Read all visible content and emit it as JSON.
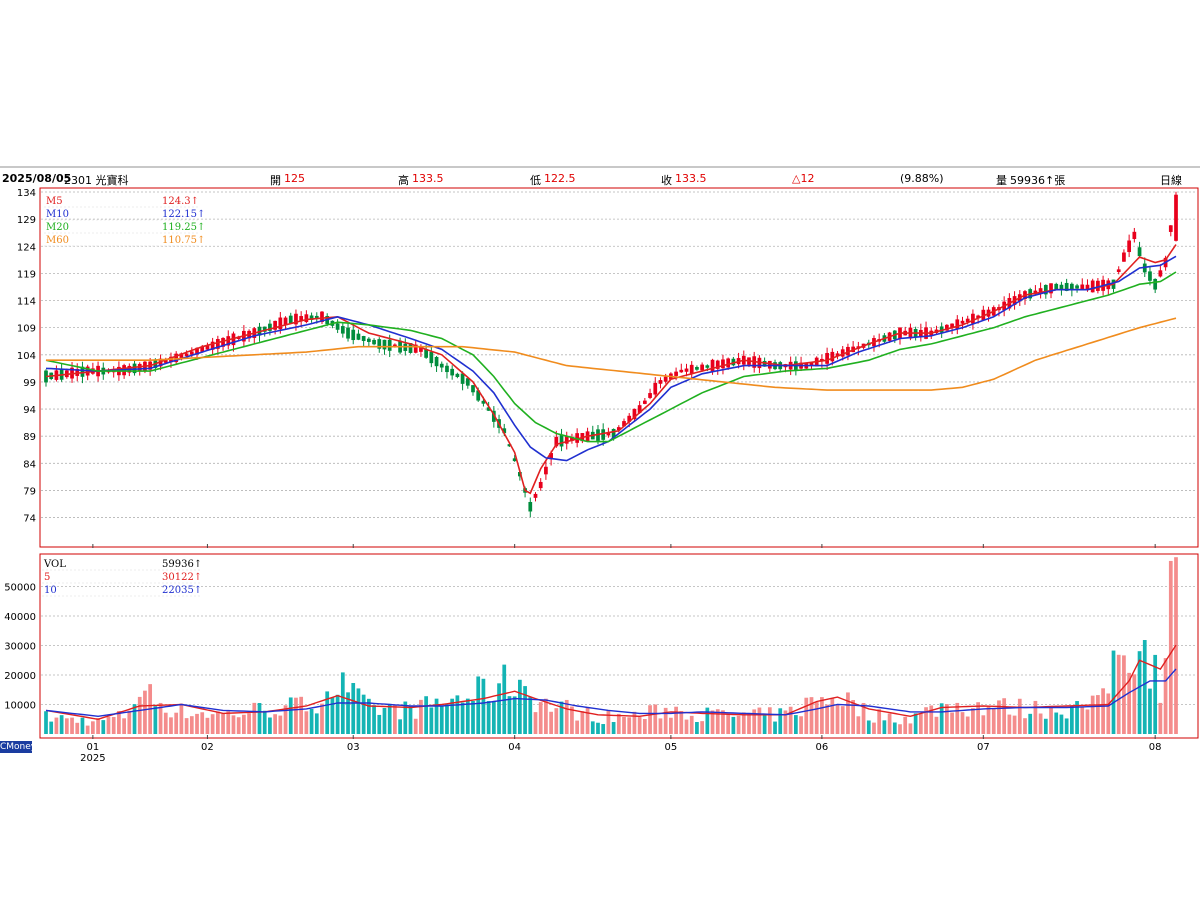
{
  "header": {
    "date": "2025/08/05",
    "stock": "2301 光寶科",
    "open_label": "開",
    "open": "125",
    "high_label": "高",
    "high": "133.5",
    "low_label": "低",
    "low": "122.5",
    "close_label": "收",
    "close": "133.5",
    "change": "△12",
    "pct": "(9.88%)",
    "vol_label": "量",
    "vol": "59936↑張",
    "period": "日線"
  },
  "brand": "CMoney",
  "chart_data": {
    "type": "candlestick",
    "price_axis": {
      "ticks": [
        74,
        79,
        84,
        89,
        94,
        99,
        104,
        109,
        114,
        119,
        124,
        129,
        134
      ],
      "range": [
        69.5,
        134
      ]
    },
    "volume_axis": {
      "ticks": [
        10000,
        20000,
        30000,
        40000,
        50000
      ],
      "range": [
        0,
        60000
      ]
    },
    "x_axis": {
      "months": [
        {
          "label": "01",
          "day": 9
        },
        {
          "label": "02",
          "day": 31
        },
        {
          "label": "03",
          "day": 59
        },
        {
          "label": "04",
          "day": 90
        },
        {
          "label": "05",
          "day": 120
        },
        {
          "label": "06",
          "day": 149
        },
        {
          "label": "07",
          "day": 180
        },
        {
          "label": "08",
          "day": 213
        }
      ],
      "year": "2025"
    },
    "price_legend": [
      {
        "name": "M5",
        "value": "124.3↑",
        "color": "#e02020"
      },
      {
        "name": "M10",
        "value": "122.15↑",
        "color": "#2030d0"
      },
      {
        "name": "M20",
        "value": "119.25↑",
        "color": "#20b020"
      },
      {
        "name": "M60",
        "value": "110.75↑",
        "color": "#f08c1e"
      }
    ],
    "volume_legend": [
      {
        "name": "VOL",
        "value": "59936↑",
        "color": "#000000"
      },
      {
        "name": "5",
        "value": "30122↑",
        "color": "#e02020"
      },
      {
        "name": "10",
        "value": "22035↑",
        "color": "#2030d0"
      }
    ],
    "colors": {
      "up": "#e8001c",
      "down": "#008c3c",
      "vol_up": "#f48c8c",
      "vol_down": "#14b4b4"
    },
    "num_days": 218,
    "candles_keyframes": [
      [
        0,
        100
      ],
      [
        8,
        101
      ],
      [
        14,
        101
      ],
      [
        20,
        102
      ],
      [
        27,
        104
      ],
      [
        33,
        106
      ],
      [
        40,
        108
      ],
      [
        47,
        110.5
      ],
      [
        53,
        111
      ],
      [
        58,
        108
      ],
      [
        64,
        106
      ],
      [
        72,
        105
      ],
      [
        76,
        102
      ],
      [
        81,
        99
      ],
      [
        85,
        94
      ],
      [
        88,
        90
      ],
      [
        91,
        82
      ],
      [
        93,
        76
      ],
      [
        95,
        80
      ],
      [
        98,
        88
      ],
      [
        104,
        89
      ],
      [
        109,
        89.5
      ],
      [
        114,
        94
      ],
      [
        118,
        99
      ],
      [
        122,
        101
      ],
      [
        128,
        102
      ],
      [
        134,
        103
      ],
      [
        140,
        102
      ],
      [
        146,
        102
      ],
      [
        152,
        104
      ],
      [
        158,
        106
      ],
      [
        164,
        108
      ],
      [
        170,
        108
      ],
      [
        176,
        110
      ],
      [
        182,
        112
      ],
      [
        188,
        115
      ],
      [
        194,
        116.5
      ],
      [
        200,
        116.5
      ],
      [
        205,
        117
      ],
      [
        207,
        122
      ],
      [
        209,
        126
      ],
      [
        211,
        120
      ],
      [
        213,
        117
      ],
      [
        215,
        121
      ],
      [
        217,
        133.5
      ]
    ],
    "volume_keyframes": [
      [
        0,
        6000
      ],
      [
        10,
        4500
      ],
      [
        15,
        6500
      ],
      [
        18,
        16000
      ],
      [
        22,
        11000
      ],
      [
        26,
        8000
      ],
      [
        35,
        7000
      ],
      [
        42,
        9000
      ],
      [
        50,
        10000
      ],
      [
        56,
        18000
      ],
      [
        62,
        9000
      ],
      [
        70,
        8500
      ],
      [
        76,
        11000
      ],
      [
        80,
        13000
      ],
      [
        84,
        15000
      ],
      [
        88,
        18000
      ],
      [
        91,
        19000
      ],
      [
        95,
        11000
      ],
      [
        100,
        9000
      ],
      [
        106,
        6000
      ],
      [
        114,
        6500
      ],
      [
        120,
        9000
      ],
      [
        126,
        7000
      ],
      [
        134,
        6500
      ],
      [
        142,
        7000
      ],
      [
        148,
        12000
      ],
      [
        152,
        14000
      ],
      [
        158,
        7000
      ],
      [
        166,
        5500
      ],
      [
        172,
        10000
      ],
      [
        180,
        10000
      ],
      [
        188,
        9000
      ],
      [
        196,
        9000
      ],
      [
        202,
        10000
      ],
      [
        206,
        30000
      ],
      [
        210,
        34000
      ],
      [
        214,
        18000
      ],
      [
        217,
        59936
      ]
    ],
    "ma_price": {
      "M5": [
        [
          0,
          100
        ],
        [
          10,
          101
        ],
        [
          20,
          102
        ],
        [
          30,
          105.5
        ],
        [
          40,
          108
        ],
        [
          50,
          110.5
        ],
        [
          56,
          111
        ],
        [
          62,
          108
        ],
        [
          70,
          106
        ],
        [
          76,
          104
        ],
        [
          82,
          99
        ],
        [
          86,
          93
        ],
        [
          90,
          86
        ],
        [
          92,
          79
        ],
        [
          93,
          78.5
        ],
        [
          95,
          83
        ],
        [
          98,
          87.5
        ],
        [
          104,
          89
        ],
        [
          110,
          90
        ],
        [
          116,
          95
        ],
        [
          120,
          99.5
        ],
        [
          126,
          101
        ],
        [
          134,
          103
        ],
        [
          142,
          102
        ],
        [
          150,
          103
        ],
        [
          158,
          106
        ],
        [
          164,
          108
        ],
        [
          170,
          108
        ],
        [
          176,
          109.5
        ],
        [
          182,
          112
        ],
        [
          188,
          115
        ],
        [
          194,
          116
        ],
        [
          200,
          116
        ],
        [
          205,
          117
        ],
        [
          210,
          122
        ],
        [
          213,
          121
        ],
        [
          215,
          121.5
        ],
        [
          217,
          124.3
        ]
      ],
      "M10": [
        [
          0,
          101.5
        ],
        [
          10,
          101
        ],
        [
          20,
          101.5
        ],
        [
          30,
          104.5
        ],
        [
          40,
          107.5
        ],
        [
          50,
          109.5
        ],
        [
          56,
          111
        ],
        [
          62,
          109.5
        ],
        [
          70,
          107
        ],
        [
          76,
          105
        ],
        [
          82,
          101
        ],
        [
          86,
          97
        ],
        [
          90,
          91
        ],
        [
          93,
          87
        ],
        [
          96,
          85
        ],
        [
          100,
          84.5
        ],
        [
          104,
          86.5
        ],
        [
          108,
          88
        ],
        [
          112,
          91
        ],
        [
          116,
          94
        ],
        [
          120,
          98
        ],
        [
          126,
          100.5
        ],
        [
          134,
          102
        ],
        [
          142,
          102
        ],
        [
          150,
          102
        ],
        [
          156,
          104.5
        ],
        [
          164,
          107
        ],
        [
          170,
          107.5
        ],
        [
          176,
          109
        ],
        [
          182,
          111
        ],
        [
          188,
          114.5
        ],
        [
          194,
          116
        ],
        [
          200,
          116
        ],
        [
          206,
          117.5
        ],
        [
          210,
          120
        ],
        [
          214,
          120.5
        ],
        [
          217,
          122.15
        ]
      ],
      "M20": [
        [
          0,
          103
        ],
        [
          10,
          101
        ],
        [
          20,
          101
        ],
        [
          30,
          103.5
        ],
        [
          40,
          106
        ],
        [
          50,
          108.5
        ],
        [
          56,
          110
        ],
        [
          62,
          109.5
        ],
        [
          70,
          108.5
        ],
        [
          76,
          107
        ],
        [
          82,
          104
        ],
        [
          86,
          100
        ],
        [
          90,
          95
        ],
        [
          94,
          91.5
        ],
        [
          98,
          89.5
        ],
        [
          104,
          88
        ],
        [
          108,
          88
        ],
        [
          114,
          91
        ],
        [
          120,
          94
        ],
        [
          126,
          97
        ],
        [
          134,
          100
        ],
        [
          142,
          101
        ],
        [
          150,
          101.5
        ],
        [
          158,
          103
        ],
        [
          164,
          105
        ],
        [
          170,
          106
        ],
        [
          176,
          107.5
        ],
        [
          182,
          109
        ],
        [
          188,
          111
        ],
        [
          196,
          113
        ],
        [
          204,
          115
        ],
        [
          210,
          117
        ],
        [
          214,
          117.5
        ],
        [
          217,
          119.25
        ]
      ],
      "M60": [
        [
          0,
          103
        ],
        [
          10,
          103
        ],
        [
          20,
          103
        ],
        [
          30,
          103.5
        ],
        [
          40,
          104
        ],
        [
          50,
          104.5
        ],
        [
          60,
          105.5
        ],
        [
          70,
          105.5
        ],
        [
          80,
          105.5
        ],
        [
          90,
          104.5
        ],
        [
          100,
          102
        ],
        [
          110,
          101
        ],
        [
          120,
          100
        ],
        [
          130,
          99
        ],
        [
          140,
          98
        ],
        [
          150,
          97.5
        ],
        [
          160,
          97.5
        ],
        [
          170,
          97.5
        ],
        [
          176,
          98
        ],
        [
          182,
          99.5
        ],
        [
          190,
          103
        ],
        [
          200,
          106
        ],
        [
          210,
          109
        ],
        [
          217,
          110.75
        ]
      ]
    },
    "ma_vol": {
      "5": [
        [
          0,
          8000
        ],
        [
          10,
          5000
        ],
        [
          18,
          9500
        ],
        [
          26,
          10000
        ],
        [
          34,
          7000
        ],
        [
          42,
          7500
        ],
        [
          50,
          9500
        ],
        [
          56,
          13000
        ],
        [
          62,
          9500
        ],
        [
          70,
          9000
        ],
        [
          76,
          10000
        ],
        [
          84,
          12000
        ],
        [
          90,
          14500
        ],
        [
          94,
          12000
        ],
        [
          100,
          8500
        ],
        [
          106,
          6500
        ],
        [
          114,
          6000
        ],
        [
          120,
          7500
        ],
        [
          126,
          7000
        ],
        [
          134,
          6500
        ],
        [
          142,
          6500
        ],
        [
          148,
          11000
        ],
        [
          152,
          12500
        ],
        [
          158,
          8500
        ],
        [
          166,
          6000
        ],
        [
          172,
          9000
        ],
        [
          180,
          9500
        ],
        [
          188,
          9000
        ],
        [
          196,
          9500
        ],
        [
          204,
          10000
        ],
        [
          208,
          18000
        ],
        [
          210,
          25000
        ],
        [
          214,
          22000
        ],
        [
          217,
          30122
        ]
      ],
      "10": [
        [
          0,
          8000
        ],
        [
          10,
          6000
        ],
        [
          18,
          8000
        ],
        [
          26,
          10000
        ],
        [
          34,
          8000
        ],
        [
          42,
          7500
        ],
        [
          50,
          8500
        ],
        [
          56,
          10500
        ],
        [
          62,
          10500
        ],
        [
          70,
          9500
        ],
        [
          76,
          9500
        ],
        [
          84,
          10500
        ],
        [
          90,
          12000
        ],
        [
          96,
          11500
        ],
        [
          102,
          9500
        ],
        [
          108,
          8000
        ],
        [
          114,
          7000
        ],
        [
          120,
          7000
        ],
        [
          126,
          7500
        ],
        [
          134,
          7000
        ],
        [
          142,
          6500
        ],
        [
          148,
          8500
        ],
        [
          152,
          10000
        ],
        [
          158,
          9500
        ],
        [
          166,
          7500
        ],
        [
          172,
          7500
        ],
        [
          180,
          8500
        ],
        [
          188,
          9000
        ],
        [
          196,
          9000
        ],
        [
          204,
          9500
        ],
        [
          208,
          14000
        ],
        [
          212,
          18000
        ],
        [
          215,
          18000
        ],
        [
          217,
          22035
        ]
      ]
    }
  }
}
